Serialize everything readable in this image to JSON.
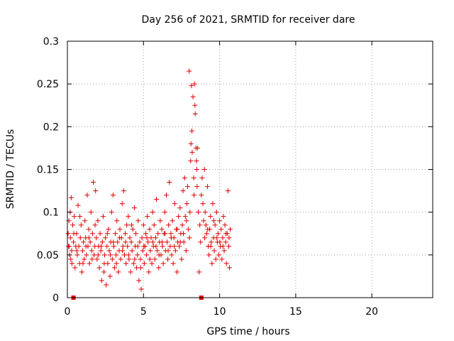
{
  "chart_data": {
    "type": "scatter",
    "title": "Day 256 of 2021, SRMTID for receiver dare",
    "xlabel": "GPS time / hours",
    "ylabel": "SRMTID / TECUs",
    "xlim": [
      0,
      24
    ],
    "ylim": [
      0,
      0.3
    ],
    "xticks": [
      "0",
      "5",
      "10",
      "15",
      "20"
    ],
    "yticks": [
      "0",
      "0.05",
      "0.1",
      "0.15",
      "0.2",
      "0.25",
      "0.3"
    ],
    "xtick_values": [
      0,
      5,
      10,
      15,
      20
    ],
    "ytick_values": [
      0,
      0.05,
      0.1,
      0.15,
      0.2,
      0.25,
      0.3
    ],
    "grid": true,
    "marker": "plus",
    "color": "#e00000",
    "series": [
      {
        "name": "SRMTID",
        "points": [
          [
            0.05,
            0.075
          ],
          [
            0.1,
            0.09
          ],
          [
            0.12,
            0.06
          ],
          [
            0.15,
            0.05
          ],
          [
            0.18,
            0.1
          ],
          [
            0.2,
            0.07
          ],
          [
            0.25,
            0.117
          ],
          [
            0.28,
            0.055
          ],
          [
            0.3,
            0.04
          ],
          [
            0.35,
            0.085
          ],
          [
            0.4,
            0.065
          ],
          [
            0.45,
            0.095
          ],
          [
            0.5,
            0.035
          ],
          [
            0.55,
            0.06
          ],
          [
            0.6,
            0.075
          ],
          [
            0.65,
            0.05
          ],
          [
            0.7,
            0.108
          ],
          [
            0.75,
            0.06
          ],
          [
            0.8,
            0.04
          ],
          [
            0.85,
            0.07
          ],
          [
            0.9,
            0.085
          ],
          [
            0.95,
            0.03
          ],
          [
            1.0,
            0.055
          ],
          [
            1.05,
            0.065
          ],
          [
            1.1,
            0.045
          ],
          [
            1.15,
            0.09
          ],
          [
            1.2,
            0.07
          ],
          [
            1.25,
            0.05
          ],
          [
            1.3,
            0.12
          ],
          [
            1.35,
            0.06
          ],
          [
            1.4,
            0.08
          ],
          [
            1.45,
            0.04
          ],
          [
            1.5,
            0.065
          ],
          [
            1.55,
            0.1
          ],
          [
            1.6,
            0.055
          ],
          [
            1.65,
            0.075
          ],
          [
            1.7,
            0.135
          ],
          [
            1.75,
            0.05
          ],
          [
            1.8,
            0.06
          ],
          [
            1.85,
            0.125
          ],
          [
            1.9,
            0.07
          ],
          [
            1.95,
            0.045
          ],
          [
            2.0,
            0.09
          ],
          [
            2.05,
            0.06
          ],
          [
            2.1,
            0.035
          ],
          [
            2.15,
            0.075
          ],
          [
            2.2,
            0.055
          ],
          [
            2.25,
            0.02
          ],
          [
            2.3,
            0.065
          ],
          [
            2.35,
            0.095
          ],
          [
            2.4,
            0.03
          ],
          [
            2.45,
            0.05
          ],
          [
            2.5,
            0.07
          ],
          [
            2.55,
            0.015
          ],
          [
            2.6,
            0.06
          ],
          [
            2.65,
            0.04
          ],
          [
            2.7,
            0.08
          ],
          [
            2.75,
            0.055
          ],
          [
            2.8,
            0.025
          ],
          [
            2.85,
            0.065
          ],
          [
            2.9,
            0.1
          ],
          [
            2.95,
            0.045
          ],
          [
            3.0,
            0.12
          ],
          [
            3.05,
            0.06
          ],
          [
            3.1,
            0.035
          ],
          [
            3.15,
            0.075
          ],
          [
            3.2,
            0.05
          ],
          [
            3.25,
            0.09
          ],
          [
            3.3,
            0.065
          ],
          [
            3.35,
            0.03
          ],
          [
            3.4,
            0.055
          ],
          [
            3.45,
            0.08
          ],
          [
            3.5,
            0.045
          ],
          [
            3.55,
            0.07
          ],
          [
            3.6,
            0.11
          ],
          [
            3.65,
            0.06
          ],
          [
            3.7,
            0.125
          ],
          [
            3.75,
            0.05
          ],
          [
            3.8,
            0.075
          ],
          [
            3.85,
            0.04
          ],
          [
            3.9,
            0.085
          ],
          [
            3.95,
            0.06
          ],
          [
            4.0,
            0.095
          ],
          [
            4.05,
            0.045
          ],
          [
            4.1,
            0.07
          ],
          [
            4.15,
            0.03
          ],
          [
            4.2,
            0.065
          ],
          [
            4.25,
            0.055
          ],
          [
            4.3,
            0.08
          ],
          [
            4.35,
            0.04
          ],
          [
            4.4,
            0.105
          ],
          [
            4.45,
            0.06
          ],
          [
            4.5,
            0.075
          ],
          [
            4.55,
            0.035
          ],
          [
            4.6,
            0.05
          ],
          [
            4.65,
            0.09
          ],
          [
            4.7,
            0.02
          ],
          [
            4.75,
            0.065
          ],
          [
            4.8,
            0.045
          ],
          [
            4.85,
            0.01
          ],
          [
            4.9,
            0.07
          ],
          [
            4.95,
            0.055
          ],
          [
            5.0,
            0.085
          ],
          [
            5.05,
            0.04
          ],
          [
            5.1,
            0.06
          ],
          [
            5.15,
            0.075
          ],
          [
            5.2,
            0.05
          ],
          [
            5.25,
            0.095
          ],
          [
            5.3,
            0.065
          ],
          [
            5.35,
            0.03
          ],
          [
            5.4,
            0.08
          ],
          [
            5.45,
            0.055
          ],
          [
            5.5,
            0.07
          ],
          [
            5.55,
            0.04
          ],
          [
            5.6,
            0.1
          ],
          [
            5.65,
            0.06
          ],
          [
            5.7,
            0.085
          ],
          [
            5.75,
            0.045
          ],
          [
            5.8,
            0.07
          ],
          [
            5.85,
            0.115
          ],
          [
            5.9,
            0.055
          ],
          [
            5.95,
            0.075
          ],
          [
            6.0,
            0.035
          ],
          [
            6.05,
            0.065
          ],
          [
            6.1,
            0.09
          ],
          [
            6.15,
            0.05
          ],
          [
            6.2,
            0.08
          ],
          [
            6.25,
            0.06
          ],
          [
            6.3,
            0.04
          ],
          [
            6.35,
            0.075
          ],
          [
            6.4,
            0.1
          ],
          [
            6.45,
            0.055
          ],
          [
            6.5,
            0.12
          ],
          [
            6.55,
            0.065
          ],
          [
            6.6,
            0.045
          ],
          [
            6.65,
            0.085
          ],
          [
            6.7,
            0.135
          ],
          [
            6.75,
            0.06
          ],
          [
            6.8,
            0.075
          ],
          [
            6.85,
            0.05
          ],
          [
            6.9,
            0.09
          ],
          [
            6.95,
            0.04
          ],
          [
            7.0,
            0.07
          ],
          [
            7.05,
            0.11
          ],
          [
            7.1,
            0.055
          ],
          [
            7.15,
            0.08
          ],
          [
            7.2,
            0.03
          ],
          [
            7.25,
            0.065
          ],
          [
            7.3,
            0.095
          ],
          [
            7.35,
            0.06
          ],
          [
            7.4,
            0.105
          ],
          [
            7.45,
            0.075
          ],
          [
            7.5,
            0.045
          ],
          [
            7.55,
            0.085
          ],
          [
            7.6,
            0.125
          ],
          [
            7.65,
            0.065
          ],
          [
            7.7,
            0.14
          ],
          [
            7.75,
            0.095
          ],
          [
            7.8,
            0.055
          ],
          [
            7.85,
            0.11
          ],
          [
            7.9,
            0.13
          ],
          [
            7.95,
            0.08
          ],
          [
            8.0,
            0.265
          ],
          [
            8.05,
            0.1
          ],
          [
            8.1,
            0.16
          ],
          [
            8.12,
            0.18
          ],
          [
            8.15,
            0.248
          ],
          [
            8.18,
            0.195
          ],
          [
            8.2,
            0.17
          ],
          [
            8.25,
            0.235
          ],
          [
            8.3,
            0.14
          ],
          [
            8.32,
            0.12
          ],
          [
            8.35,
            0.25
          ],
          [
            8.38,
            0.225
          ],
          [
            8.4,
            0.215
          ],
          [
            8.45,
            0.175
          ],
          [
            8.48,
            0.16
          ],
          [
            8.5,
            0.15
          ],
          [
            8.52,
            0.13
          ],
          [
            8.55,
            0.175
          ],
          [
            8.6,
            0.1
          ],
          [
            8.65,
            0.03
          ],
          [
            8.7,
            0.085
          ],
          [
            8.75,
            0.065
          ],
          [
            8.8,
            0.12
          ],
          [
            8.85,
            0.14
          ],
          [
            8.9,
            0.11
          ],
          [
            8.95,
            0.09
          ],
          [
            9.0,
            0.15
          ],
          [
            9.05,
            0.1
          ],
          [
            9.1,
            0.085
          ],
          [
            9.15,
            0.075
          ],
          [
            9.2,
            0.13
          ],
          [
            9.25,
            0.06
          ],
          [
            9.3,
            0.05
          ],
          [
            9.35,
            0.08
          ],
          [
            9.4,
            0.095
          ],
          [
            9.45,
            0.065
          ],
          [
            9.5,
            0.04
          ],
          [
            9.55,
            0.11
          ],
          [
            9.6,
            0.07
          ],
          [
            9.65,
            0.055
          ],
          [
            9.7,
            0.085
          ],
          [
            9.75,
            0.045
          ],
          [
            9.8,
            0.1
          ],
          [
            9.85,
            0.065
          ],
          [
            9.9,
            0.075
          ],
          [
            9.95,
            0.05
          ],
          [
            10.0,
            0.09
          ],
          [
            10.05,
            0.06
          ],
          [
            10.1,
            0.08
          ],
          [
            10.15,
            0.045
          ],
          [
            10.2,
            0.07
          ],
          [
            10.25,
            0.095
          ],
          [
            10.3,
            0.055
          ],
          [
            10.35,
            0.085
          ],
          [
            10.4,
            0.065
          ],
          [
            10.45,
            0.04
          ],
          [
            10.5,
            0.075
          ],
          [
            10.55,
            0.125
          ],
          [
            10.6,
            0.06
          ],
          [
            10.65,
            0.035
          ],
          [
            10.7,
            0.08
          ],
          [
            0.08,
            0.06
          ],
          [
            0.22,
            0.045
          ],
          [
            0.42,
            0.075
          ],
          [
            0.62,
            0.055
          ],
          [
            0.82,
            0.095
          ],
          [
            1.02,
            0.04
          ],
          [
            1.22,
            0.06
          ],
          [
            1.42,
            0.07
          ],
          [
            1.62,
            0.045
          ],
          [
            1.82,
            0.085
          ],
          [
            2.02,
            0.05
          ],
          [
            2.22,
            0.06
          ],
          [
            2.42,
            0.04
          ],
          [
            2.62,
            0.075
          ],
          [
            2.82,
            0.05
          ],
          [
            3.02,
            0.065
          ],
          [
            3.22,
            0.04
          ],
          [
            3.42,
            0.07
          ],
          [
            3.62,
            0.055
          ],
          [
            3.82,
            0.065
          ],
          [
            4.02,
            0.05
          ],
          [
            4.22,
            0.085
          ],
          [
            4.42,
            0.045
          ],
          [
            4.62,
            0.06
          ],
          [
            4.82,
            0.035
          ],
          [
            5.02,
            0.06
          ],
          [
            5.22,
            0.07
          ],
          [
            5.42,
            0.045
          ],
          [
            5.62,
            0.065
          ],
          [
            5.82,
            0.06
          ],
          [
            6.02,
            0.05
          ],
          [
            6.22,
            0.065
          ],
          [
            6.42,
            0.075
          ],
          [
            6.62,
            0.055
          ],
          [
            6.82,
            0.07
          ],
          [
            7.02,
            0.06
          ],
          [
            7.22,
            0.08
          ],
          [
            7.42,
            0.065
          ],
          [
            7.62,
            0.075
          ],
          [
            7.82,
            0.09
          ],
          [
            8.02,
            0.07
          ],
          [
            9.02,
            0.07
          ],
          [
            9.22,
            0.08
          ],
          [
            9.42,
            0.06
          ],
          [
            9.62,
            0.09
          ],
          [
            9.82,
            0.07
          ],
          [
            10.02,
            0.065
          ],
          [
            10.22,
            0.06
          ],
          [
            10.42,
            0.075
          ],
          [
            10.62,
            0.07
          ]
        ]
      }
    ],
    "axis_markers": [
      0.4,
      8.8
    ]
  }
}
